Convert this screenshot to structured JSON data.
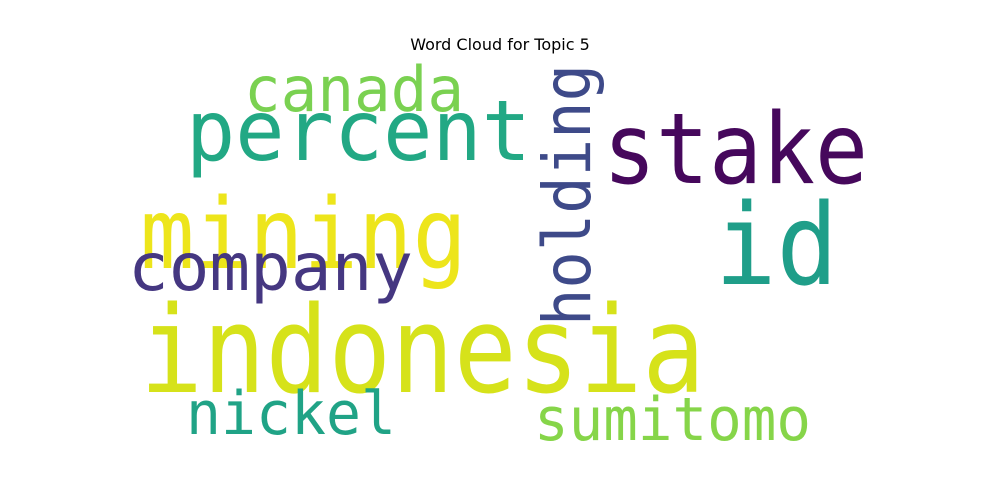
{
  "title": "Word Cloud for Topic 5",
  "words": [
    {
      "text": "indonesia",
      "color": "#d6e21a"
    },
    {
      "text": "mining",
      "color": "#ede51b"
    },
    {
      "text": "stake",
      "color": "#46085c"
    },
    {
      "text": "id",
      "color": "#1f9e89"
    },
    {
      "text": "percent",
      "color": "#22a884"
    },
    {
      "text": "company",
      "color": "#453781"
    },
    {
      "text": "holding",
      "color": "#3e4a89"
    },
    {
      "text": "canada",
      "color": "#7ad151"
    },
    {
      "text": "sumitomo",
      "color": "#86d549"
    },
    {
      "text": "nickel",
      "color": "#20a386"
    }
  ]
}
